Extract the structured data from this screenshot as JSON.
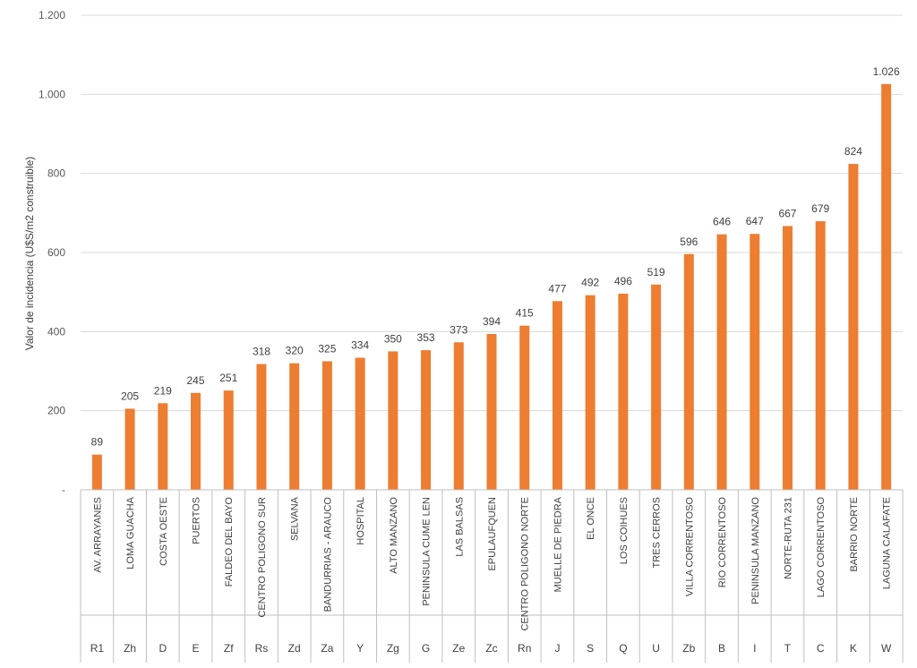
{
  "chart_data": {
    "type": "bar",
    "title": "",
    "ylabel": "Valor de incidencia (U$S/m2 construible)",
    "ylim": [
      0,
      1200
    ],
    "yticks": [
      0,
      200,
      400,
      600,
      800,
      1000,
      1200
    ],
    "ytick_labels": [
      "-",
      "200",
      "400",
      "600",
      "800",
      "1.000",
      "1.200"
    ],
    "grid": true,
    "legend": "none",
    "bar_color": "#ED7D31",
    "categories": [
      {
        "name": "AV. ARRAYANES",
        "code": "R1",
        "value": 89,
        "label": "89"
      },
      {
        "name": "LOMA GUACHA",
        "code": "Zh",
        "value": 205,
        "label": "205"
      },
      {
        "name": "COSTA OESTE",
        "code": "D",
        "value": 219,
        "label": "219"
      },
      {
        "name": "PUERTOS",
        "code": "E",
        "value": 245,
        "label": "245"
      },
      {
        "name": "FALDEO DEL BAYO",
        "code": "Zf",
        "value": 251,
        "label": "251"
      },
      {
        "name": "CENTRO POLIGONO SUR",
        "code": "Rs",
        "value": 318,
        "label": "318"
      },
      {
        "name": "SELVANA",
        "code": "Zd",
        "value": 320,
        "label": "320"
      },
      {
        "name": "BANDURRIAS - ARAUCO",
        "code": "Za",
        "value": 325,
        "label": "325"
      },
      {
        "name": "HOSPITAL",
        "code": "Y",
        "value": 334,
        "label": "334"
      },
      {
        "name": "ALTO MANZANO",
        "code": "Zg",
        "value": 350,
        "label": "350"
      },
      {
        "name": "PENINSULA CUME LEN",
        "code": "G",
        "value": 353,
        "label": "353"
      },
      {
        "name": "LAS BALSAS",
        "code": "Ze",
        "value": 373,
        "label": "373"
      },
      {
        "name": "EPULAUFQUEN",
        "code": "Zc",
        "value": 394,
        "label": "394"
      },
      {
        "name": "CENTRO POLIGONO NORTE",
        "code": "Rn",
        "value": 415,
        "label": "415"
      },
      {
        "name": "MUELLE DE PIEDRA",
        "code": "J",
        "value": 477,
        "label": "477"
      },
      {
        "name": "EL ONCE",
        "code": "S",
        "value": 492,
        "label": "492"
      },
      {
        "name": "LOS COIHUES",
        "code": "Q",
        "value": 496,
        "label": "496"
      },
      {
        "name": "TRES CERROS",
        "code": "U",
        "value": 519,
        "label": "519"
      },
      {
        "name": "VILLA CORRENTOSO",
        "code": "Zb",
        "value": 596,
        "label": "596"
      },
      {
        "name": "RIO CORRENTOSO",
        "code": "B",
        "value": 646,
        "label": "646"
      },
      {
        "name": "PENINSULA MANZANO",
        "code": "I",
        "value": 647,
        "label": "647"
      },
      {
        "name": "NORTE-RUTA 231",
        "code": "T",
        "value": 667,
        "label": "667"
      },
      {
        "name": "LAGO CORRENTOSO",
        "code": "C",
        "value": 679,
        "label": "679"
      },
      {
        "name": "BARRIO NORTE",
        "code": "K",
        "value": 824,
        "label": "824"
      },
      {
        "name": "LAGUNA CALAFATE",
        "code": "W",
        "value": 1026,
        "label": "1.026"
      }
    ]
  }
}
